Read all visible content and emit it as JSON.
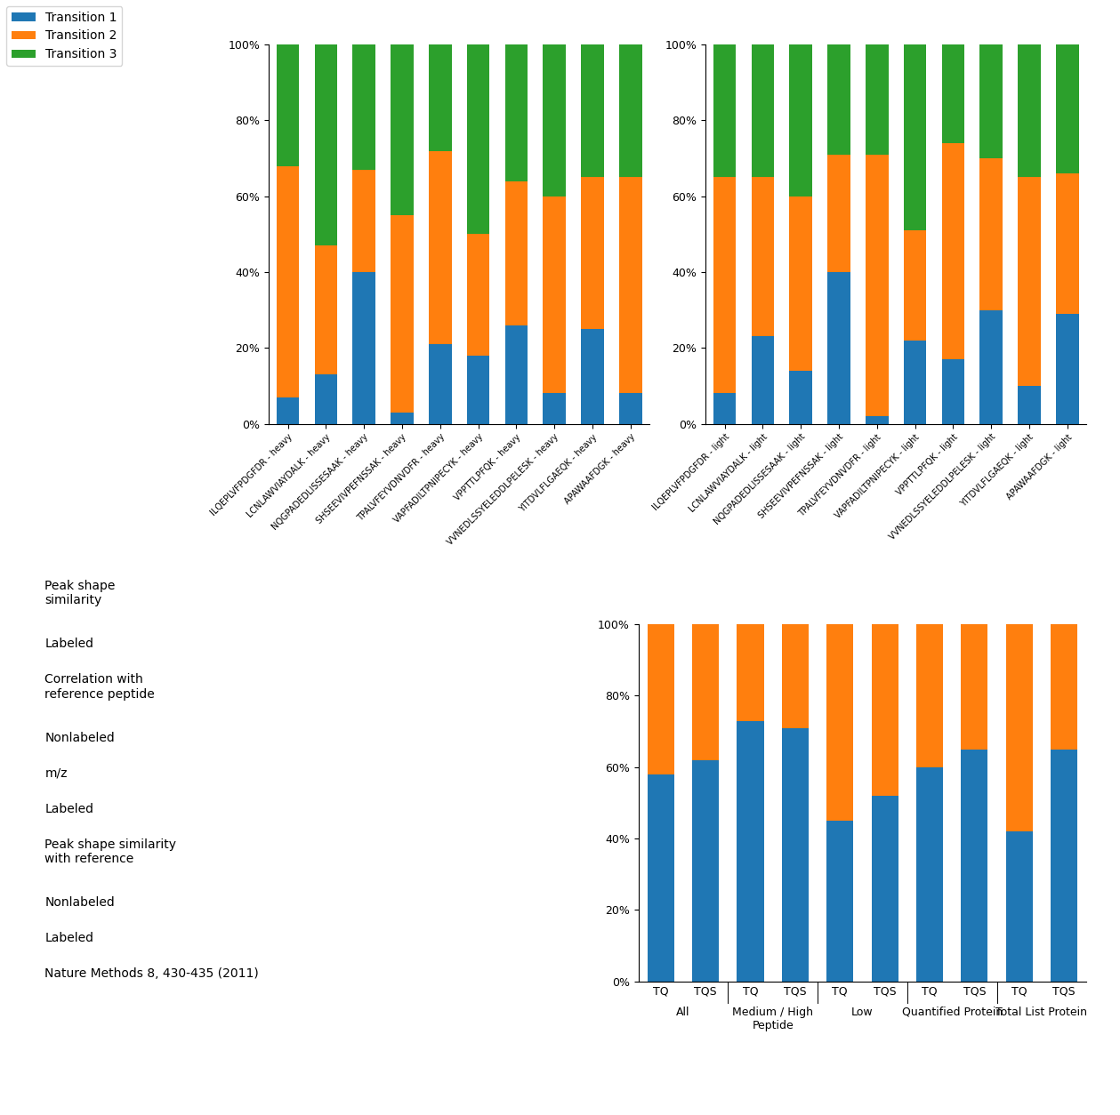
{
  "chart_data": [
    {
      "type": "bar",
      "stacked": true,
      "categories": [
        "ILQEPLVFPDGFDR - heavy",
        "LCNLAWVIAYDALK - heavy",
        "NQGPADEDLISSESAAK - heavy",
        "SHSEEVIVPEFNSSAK - heavy",
        "TPALVFEYVDNVDFR - heavy",
        "VAPFADILTPNIPECYK - heavy",
        "VPPTTLPFQK - heavy",
        "VVNEDLSSYELEDDLPELESK - heavy",
        "YITDVLFLGAEQK - heavy",
        "APAWAAFDGK - heavy"
      ],
      "series": [
        {
          "name": "Transition 1",
          "values": [
            7,
            13,
            40,
            3,
            21,
            18,
            26,
            8,
            25,
            8
          ]
        },
        {
          "name": "Transition 2",
          "values": [
            61,
            34,
            27,
            52,
            51,
            32,
            38,
            52,
            40,
            57
          ]
        },
        {
          "name": "Transition 3",
          "values": [
            32,
            53,
            33,
            45,
            28,
            50,
            36,
            40,
            35,
            35
          ]
        }
      ],
      "ylim": [
        0,
        100
      ],
      "yticks": [
        {
          "value": 0,
          "label": "0%"
        },
        {
          "value": 20,
          "label": "20%"
        },
        {
          "value": 40,
          "label": "40%"
        },
        {
          "value": 60,
          "label": "60%"
        },
        {
          "value": 80,
          "label": "80%"
        },
        {
          "value": 100,
          "label": "100%"
        }
      ],
      "legend": "upper left",
      "annotations": [
        "Peak shape\nsimilarity",
        "Labeled",
        "Correlation with\nreference peptide",
        "Nonlabeled",
        "m/z",
        "Labeled",
        "Peak shape similarity\nwith reference",
        "Nonlabeled",
        "Labeled",
        "Nature Methods 8, 430-435 (2011)"
      ]
    },
    {
      "type": "bar",
      "stacked": true,
      "categories": [
        "ILQEPLVFPDGFDR - light",
        "LCNLAWVIAYDALK - light",
        "NQGPADEDLISSESAAK - light",
        "SHSEEVIVPEFNSSAK - light",
        "TPALVFEYVDNVDFR - light",
        "VAPFADILTPNIPECYK - light",
        "VPPTTLPFQK - light",
        "VVNEDLSSYELEDDLPELESK - light",
        "YITDVLFLGAEQK - light",
        "APAWAAFDGK - light"
      ],
      "series": [
        {
          "name": "Transition 1",
          "values": [
            8,
            23,
            14,
            40,
            2,
            22,
            17,
            30,
            10,
            29
          ]
        },
        {
          "name": "Transition 2",
          "values": [
            57,
            42,
            46,
            31,
            69,
            29,
            57,
            40,
            55,
            37
          ]
        },
        {
          "name": "Transition 3",
          "values": [
            35,
            35,
            40,
            29,
            29,
            49,
            26,
            30,
            35,
            34
          ]
        }
      ],
      "ylim": [
        0,
        100
      ],
      "yticks": [
        {
          "value": 0,
          "label": "0%"
        },
        {
          "value": 20,
          "label": "20%"
        },
        {
          "value": 40,
          "label": "40%"
        },
        {
          "value": 60,
          "label": "60%"
        },
        {
          "value": 80,
          "label": "80%"
        },
        {
          "value": 100,
          "label": "100%"
        }
      ]
    },
    {
      "type": "bar",
      "stacked": true,
      "categories": [
        "TQ",
        "TQS",
        "TQ",
        "TQS",
        "TQ",
        "TQS",
        "TQ",
        "TQS",
        "TQ",
        "TQS"
      ],
      "groups": [
        "All",
        "Medium / High\nPeptide",
        "Low",
        "Quantified Protein",
        "Total List Protein"
      ],
      "series": [
        {
          "values": [
            58,
            62,
            73,
            71,
            45,
            52,
            60,
            65,
            42,
            65
          ]
        },
        {
          "values": [
            42,
            38,
            27,
            29,
            55,
            48,
            40,
            35,
            58,
            35
          ]
        }
      ],
      "ylim": [
        0,
        100
      ],
      "yticks": [
        {
          "value": 0,
          "label": "0%"
        },
        {
          "value": 20,
          "label": "20%"
        },
        {
          "value": 40,
          "label": "40%"
        },
        {
          "value": 60,
          "label": "60%"
        },
        {
          "value": 80,
          "label": "80%"
        },
        {
          "value": 100,
          "label": "100%"
        }
      ]
    }
  ]
}
